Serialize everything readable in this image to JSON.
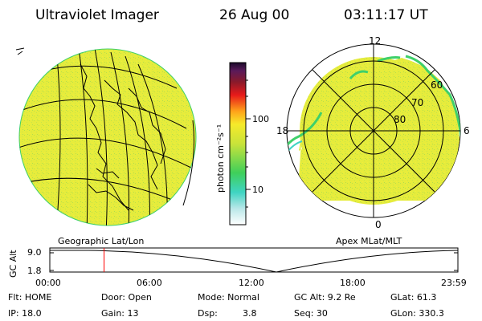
{
  "header": {
    "title": "Ultraviolet Imager",
    "date": "26 Aug 00",
    "time": "03:11:17 UT"
  },
  "colorbar": {
    "label": "photon cm⁻²s⁻¹",
    "ticks": [
      "100",
      "10"
    ]
  },
  "panels": {
    "left_caption": "Geographic Lat/Lon",
    "right_caption": "Apex MLat/MLT"
  },
  "polar": {
    "mlt_labels": [
      "12",
      "18",
      "6",
      "0"
    ],
    "lat_labels": [
      "60",
      "70",
      "80"
    ]
  },
  "orbit": {
    "axis_label": "GC Alt",
    "y_ticks": [
      "9.0",
      "1.8"
    ],
    "x_ticks": [
      "00:00",
      "06:00",
      "12:00",
      "18:00",
      "23:59"
    ],
    "current_time_hours": 3.19,
    "cursor_color": "#ff0000"
  },
  "status": {
    "flt": "Flt: HOME",
    "ip": "IP: 18.0",
    "door": "Door: Open",
    "gain": "Gain: 13",
    "mode": "Mode: Normal",
    "dsp_label": "Dsp:",
    "dsp_value": "3.8",
    "gc_alt": "GC Alt: 9.2 Re",
    "seq": "Seq: 30",
    "glat": "GLat: 61.3",
    "glon": "GLon: 330.3"
  },
  "colors": {
    "image_fill": "#e6ec3c",
    "image_speckle": "#b9e04a",
    "edge_green": "#3fd06a"
  }
}
